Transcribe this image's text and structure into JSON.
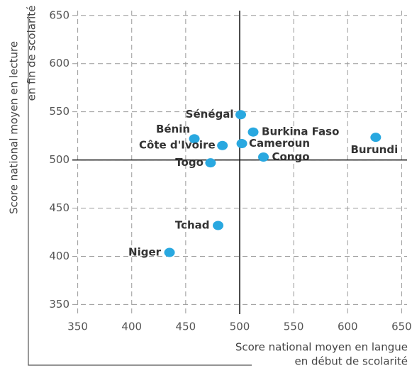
{
  "chart_data": {
    "type": "scatter",
    "x_label": [
      "Score national moyen en langue",
      "en début de scolarité"
    ],
    "y_label": [
      "Score national moyen en lecture",
      "en fin de scolarité"
    ],
    "color": "#29a8e0",
    "grid": true,
    "reference_lines": {
      "x": 500,
      "y": 500
    },
    "xlim": [
      345,
      655
    ],
    "xticks": [
      350,
      400,
      450,
      500,
      550,
      600,
      650
    ],
    "ylim": [
      340,
      655
    ],
    "yticks": [
      350,
      400,
      450,
      500,
      550,
      600,
      650
    ],
    "labels": [
      "Sénégal",
      "Burkina Faso",
      "Burundi",
      "Bénin",
      "Côte d'Ivoire",
      "Cameroun",
      "Congo",
      "Togo",
      "Tchad",
      "Niger"
    ],
    "x": [
      501,
      512.5,
      626,
      458,
      484,
      502,
      522,
      473,
      480,
      435
    ],
    "values": [
      547,
      529,
      523.5,
      522,
      515,
      517,
      503,
      497,
      432,
      404
    ]
  }
}
